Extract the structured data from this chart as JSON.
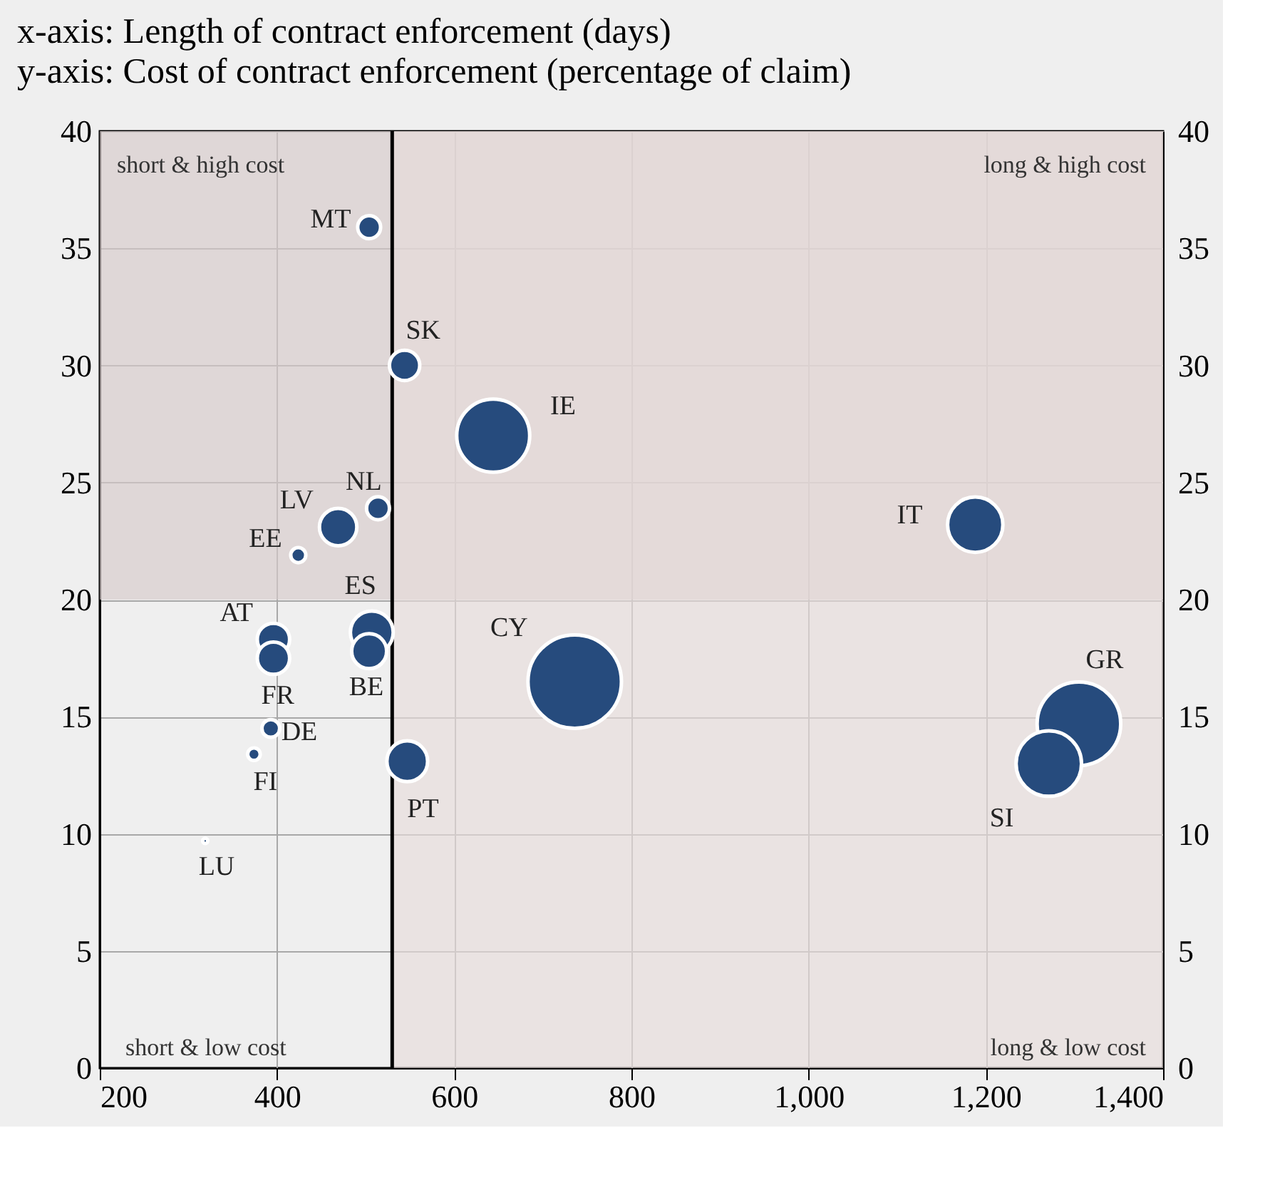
{
  "chart_data": {
    "type": "bubble",
    "title": "x-axis: Length of contract enforcement (days)",
    "subtitle": "y-axis: Cost of contract enforcement (percentage of claim)",
    "x": [
      504,
      544,
      644,
      514,
      469,
      424,
      507,
      504,
      396,
      396,
      393,
      374,
      319,
      547,
      736,
      1188,
      1305,
      1271
    ],
    "values": [
      35.9,
      30.0,
      27.0,
      23.9,
      23.1,
      21.9,
      18.6,
      17.8,
      18.3,
      17.5,
      14.5,
      13.4,
      9.7,
      13.1,
      16.5,
      23.2,
      14.7,
      13.0
    ],
    "sizes": [
      0.06,
      0.105,
      0.61,
      0.06,
      0.16,
      0.026,
      0.21,
      0.14,
      0.12,
      0.12,
      0.036,
      0.018,
      0.003,
      0.19,
      1,
      0.35,
      0.8,
      0.49
    ],
    "value_labels": [
      "MT",
      "SK",
      "IE",
      "NL",
      "LV",
      "EE",
      "ES",
      "BE",
      "AT",
      "FR",
      "DE",
      "FI",
      "LU",
      "PT",
      "CY",
      "IT",
      "GR",
      "SI"
    ],
    "color": "#264b7d",
    "marker": "circle",
    "xlim": [
      200,
      1400
    ],
    "xticks": [
      200,
      400,
      600,
      800,
      {
        "value": 1000,
        "label": "1,000"
      },
      {
        "value": 1200,
        "label": "1,200"
      },
      {
        "value": 1400,
        "label": "1,400"
      }
    ],
    "ylim": [
      0,
      40
    ],
    "yticks": [
      0,
      5,
      10,
      15,
      20,
      25,
      30,
      35,
      40
    ],
    "y2lim": [
      0,
      40
    ],
    "y2ticks": [
      0,
      5,
      10,
      15,
      20,
      25,
      30,
      35,
      40
    ],
    "grid": true,
    "ref_lines": [
      {
        "axis": "x",
        "value": 530,
        "color": "#000000"
      }
    ],
    "bands": [
      {
        "axis": "y",
        "from": 20,
        "to": 40,
        "color": "#d6cac9"
      },
      {
        "axis": "x",
        "from": 530,
        "to": 1400,
        "color": "#e6dcda"
      }
    ],
    "annotations": [
      "short & high cost",
      "long & high cost",
      "short & low cost",
      "long & low cost"
    ]
  }
}
